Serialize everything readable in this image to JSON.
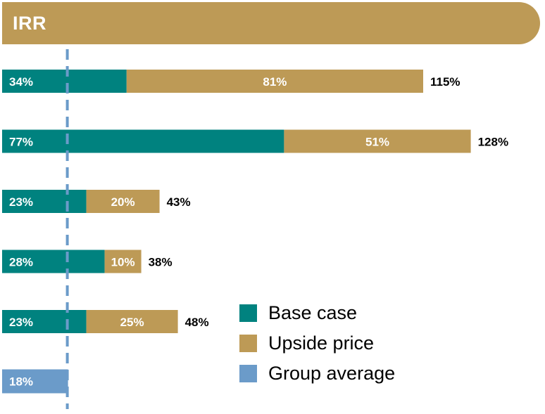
{
  "header": {
    "title": "IRR"
  },
  "colors": {
    "base": "#00827f",
    "upside": "#bd9a56",
    "average": "#6b9bc9",
    "header": "#bd9a56",
    "divider": "#6b9bc9"
  },
  "chart_data": {
    "type": "bar",
    "orientation": "horizontal",
    "stacked": true,
    "rows": [
      {
        "base": 34,
        "base_label": "34%",
        "upside": 81,
        "upside_label": "81%",
        "total_label": "115%"
      },
      {
        "base": 77,
        "base_label": "77%",
        "upside": 51,
        "upside_label": "51%",
        "total_label": "128%"
      },
      {
        "base": 23,
        "base_label": "23%",
        "upside": 20,
        "upside_label": "20%",
        "total_label": "43%"
      },
      {
        "base": 28,
        "base_label": "28%",
        "upside": 10,
        "upside_label": "10%",
        "total_label": "38%"
      },
      {
        "base": 23,
        "base_label": "23%",
        "upside": 25,
        "upside_label": "25%",
        "total_label": "48%"
      }
    ],
    "group_average": {
      "value": 18,
      "label": "18%"
    },
    "reference_line": {
      "value": 18,
      "style": "dashed"
    },
    "legend": [
      {
        "key": "base",
        "label": "Base case"
      },
      {
        "key": "upside",
        "label": "Upside price"
      },
      {
        "key": "average",
        "label": "Group average"
      }
    ],
    "legend_position": "bottom-right",
    "grid": false
  }
}
